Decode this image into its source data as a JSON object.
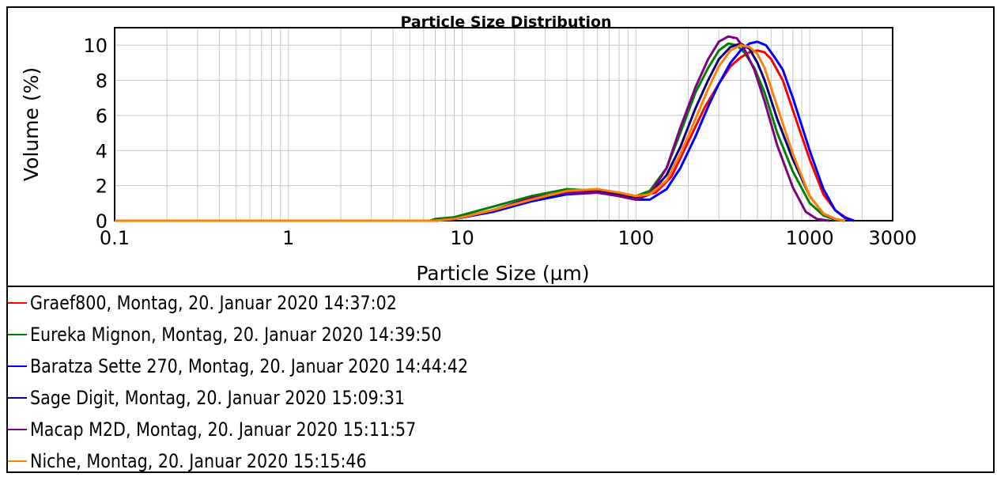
{
  "chart_data": {
    "type": "line",
    "title": "Particle Size Distribution",
    "xlabel": "Particle Size (µm)",
    "ylabel": "Volume (%)",
    "xscale": "log",
    "xlim": [
      0.1,
      3000
    ],
    "ylim": [
      0,
      11
    ],
    "x_ticks": [
      0.1,
      1,
      10,
      100,
      1000,
      3000
    ],
    "x_tick_labels": [
      "0.1",
      "1",
      "10",
      "100",
      "1000",
      "3000"
    ],
    "y_ticks": [
      0,
      2,
      4,
      6,
      8,
      10
    ],
    "y_tick_labels": [
      "0",
      "2",
      "4",
      "6",
      "8",
      "10"
    ],
    "grid": true,
    "legend_position": "bottom",
    "series": [
      {
        "name": "Graef800, Montag, 20. Januar 2020 14:37:02",
        "color": "#ff0000",
        "x": [
          0.1,
          6.5,
          9,
          15,
          25,
          40,
          60,
          80,
          100,
          130,
          160,
          200,
          250,
          300,
          350,
          400,
          450,
          500,
          550,
          600,
          700,
          800,
          1000,
          1200,
          1400,
          1600,
          1800
        ],
        "y": [
          0,
          0,
          0.1,
          0.6,
          1.2,
          1.6,
          1.7,
          1.5,
          1.4,
          1.6,
          2.5,
          4.5,
          6.5,
          7.8,
          8.8,
          9.3,
          9.6,
          9.7,
          9.6,
          9.2,
          8.0,
          6.3,
          3.5,
          1.5,
          0.6,
          0.2,
          0
        ]
      },
      {
        "name": "Eureka Mignon, Montag, 20. Januar 2020 14:39:50",
        "color": "#008000",
        "x": [
          0.1,
          6.5,
          7,
          9,
          15,
          25,
          40,
          60,
          80,
          100,
          120,
          150,
          180,
          220,
          260,
          300,
          340,
          380,
          420,
          480,
          550,
          650,
          800,
          1000,
          1200,
          1400,
          1600
        ],
        "y": [
          0,
          0,
          0.1,
          0.2,
          0.8,
          1.4,
          1.8,
          1.7,
          1.5,
          1.4,
          1.7,
          3.0,
          5.0,
          7.3,
          8.7,
          9.7,
          10.1,
          10.0,
          9.6,
          8.7,
          7.3,
          5.0,
          2.8,
          1.0,
          0.3,
          0.05,
          0
        ]
      },
      {
        "name": "Baratza Sette 270, Montag, 20. Januar 2020 14:44:42",
        "color": "#0000ff",
        "x": [
          0.1,
          7,
          9,
          15,
          25,
          40,
          60,
          80,
          100,
          120,
          150,
          180,
          220,
          260,
          300,
          350,
          400,
          450,
          500,
          560,
          620,
          700,
          800,
          1000,
          1200,
          1400,
          1600,
          1800
        ],
        "y": [
          0,
          0,
          0.1,
          0.5,
          1.1,
          1.5,
          1.6,
          1.4,
          1.2,
          1.2,
          1.8,
          3.0,
          4.8,
          6.5,
          7.8,
          9.0,
          9.7,
          10.1,
          10.2,
          10.0,
          9.4,
          8.6,
          7.0,
          4.0,
          1.8,
          0.6,
          0.15,
          0
        ]
      },
      {
        "name": "Sage Digit, Montag, 20. Januar 2020 15:09:31",
        "color": "#000080",
        "x": [
          0.1,
          7,
          9,
          15,
          25,
          40,
          60,
          80,
          100,
          120,
          150,
          180,
          220,
          260,
          300,
          350,
          400,
          450,
          500,
          550,
          650,
          800,
          1000,
          1200,
          1400,
          1600
        ],
        "y": [
          0,
          0,
          0.1,
          0.6,
          1.2,
          1.6,
          1.7,
          1.5,
          1.3,
          1.5,
          2.6,
          4.2,
          6.4,
          8.0,
          9.2,
          9.9,
          10.1,
          9.8,
          9.0,
          8.0,
          5.8,
          3.5,
          1.4,
          0.4,
          0.1,
          0
        ]
      },
      {
        "name": "Macap M2D, Montag, 20. Januar 2020 15:11:57",
        "color": "#800080",
        "x": [
          0.1,
          7,
          9,
          15,
          25,
          40,
          60,
          80,
          100,
          120,
          150,
          180,
          220,
          260,
          300,
          340,
          380,
          420,
          480,
          550,
          650,
          800,
          950,
          1100,
          1300
        ],
        "y": [
          0,
          0,
          0.1,
          0.6,
          1.3,
          1.6,
          1.6,
          1.4,
          1.2,
          1.5,
          3.0,
          5.3,
          7.6,
          9.2,
          10.2,
          10.5,
          10.4,
          9.8,
          8.6,
          6.8,
          4.3,
          1.9,
          0.5,
          0.1,
          0
        ]
      },
      {
        "name": "Niche, Montag, 20. Januar 2020 15:15:46",
        "color": "#ff8000",
        "x": [
          0.1,
          7,
          9,
          15,
          25,
          40,
          60,
          80,
          100,
          120,
          150,
          180,
          220,
          260,
          300,
          350,
          400,
          450,
          500,
          550,
          650,
          800,
          1000,
          1200,
          1400,
          1600
        ],
        "y": [
          0,
          0,
          0.1,
          0.6,
          1.2,
          1.7,
          1.8,
          1.6,
          1.4,
          1.5,
          2.3,
          3.8,
          5.8,
          7.5,
          8.8,
          9.7,
          10.0,
          9.9,
          9.5,
          8.7,
          6.5,
          3.8,
          1.4,
          0.4,
          0.1,
          0
        ]
      }
    ]
  }
}
